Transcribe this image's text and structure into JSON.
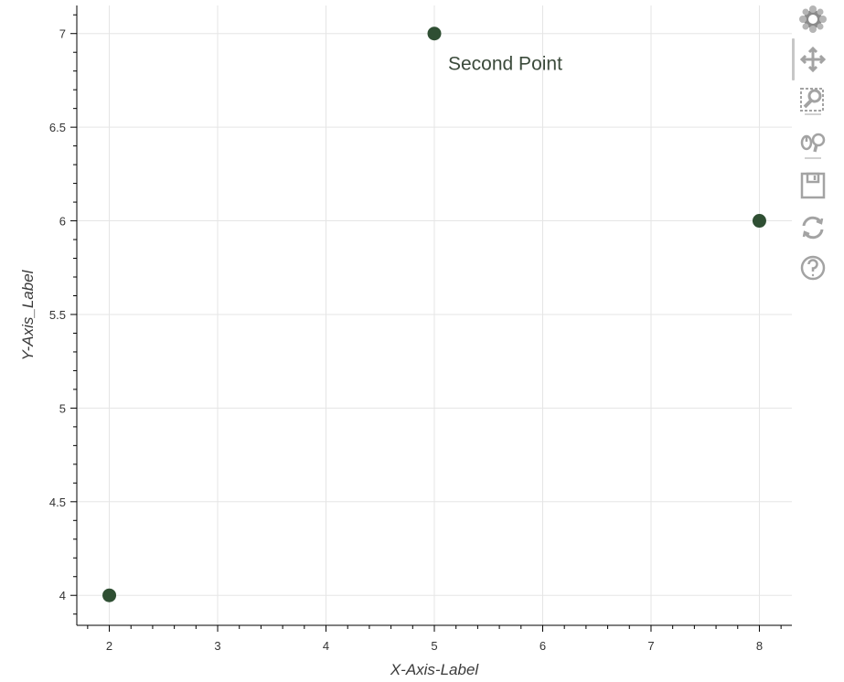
{
  "chart_data": {
    "type": "scatter",
    "x": [
      2,
      5,
      8
    ],
    "y": [
      4,
      7,
      6
    ],
    "xlabel": "X-Axis-Label",
    "ylabel": "Y-Axis_Label",
    "xlim": [
      1.7,
      8.3
    ],
    "ylim": [
      3.84,
      7.15
    ],
    "xticks": [
      2,
      3,
      4,
      5,
      6,
      7,
      8
    ],
    "yticks": [
      4,
      4.5,
      5,
      5.5,
      6,
      6.5,
      7
    ],
    "ytick_labels": [
      "4",
      "4.5",
      "5",
      "5.5",
      "6",
      "6.5",
      "7"
    ],
    "grid": true,
    "marker_color": "#2f4f33",
    "annotation": {
      "text": "Second Point",
      "x": 5,
      "y": 7
    }
  },
  "toolbar": {
    "tools": [
      {
        "name": "bokeh-logo-icon"
      },
      {
        "name": "pan-icon"
      },
      {
        "name": "box-zoom-icon"
      },
      {
        "name": "wheel-zoom-icon"
      },
      {
        "name": "save-icon"
      },
      {
        "name": "reset-icon"
      },
      {
        "name": "help-icon"
      }
    ]
  }
}
